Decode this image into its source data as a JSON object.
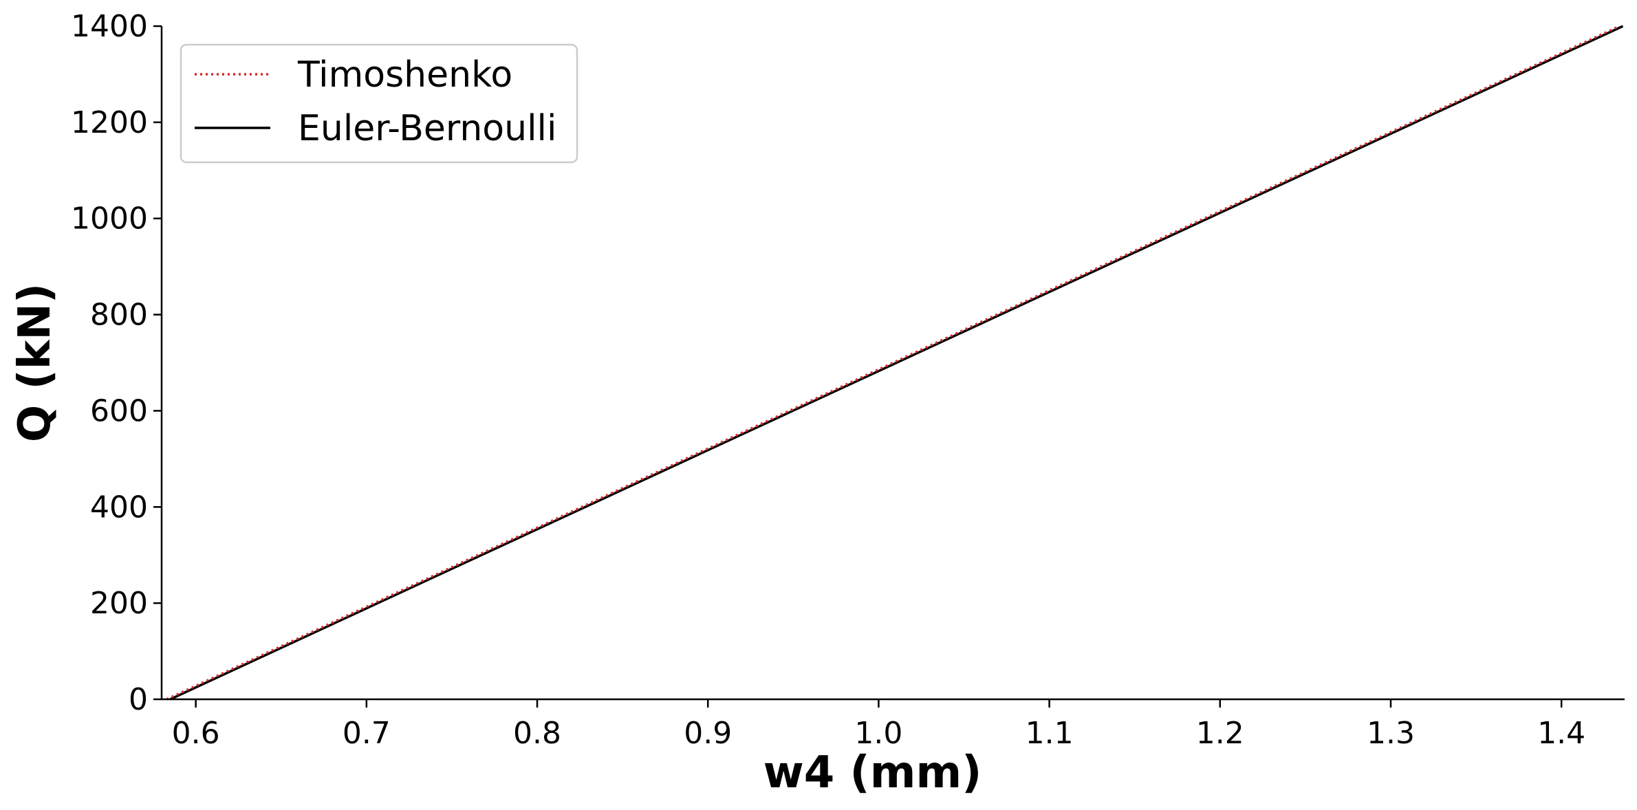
{
  "chart_data": {
    "type": "line",
    "xlabel": "w4 (mm)",
    "ylabel": "Q (kN)",
    "xlim": [
      0.58,
      1.437
    ],
    "ylim": [
      0,
      1400
    ],
    "xticks": [
      "0.6",
      "0.7",
      "0.8",
      "0.9",
      "1.0",
      "1.1",
      "1.2",
      "1.3",
      "1.4"
    ],
    "xtick_values": [
      0.6,
      0.7,
      0.8,
      0.9,
      1.0,
      1.1,
      1.2,
      1.3,
      1.4
    ],
    "yticks": [
      "0",
      "200",
      "400",
      "600",
      "800",
      "1000",
      "1200",
      "1400"
    ],
    "ytick_values": [
      0,
      200,
      400,
      600,
      800,
      1000,
      1200,
      1400
    ],
    "grid": false,
    "legend_position": "top-left",
    "series": [
      {
        "name": "Timoshenko",
        "color": "#d62728",
        "style": "dotted",
        "x": [
          0.583,
          1.434
        ],
        "y": [
          0,
          1400
        ]
      },
      {
        "name": "Euler-Bernoulli",
        "color": "#000000",
        "style": "solid",
        "x": [
          0.585,
          1.436
        ],
        "y": [
          0,
          1400
        ]
      }
    ]
  }
}
